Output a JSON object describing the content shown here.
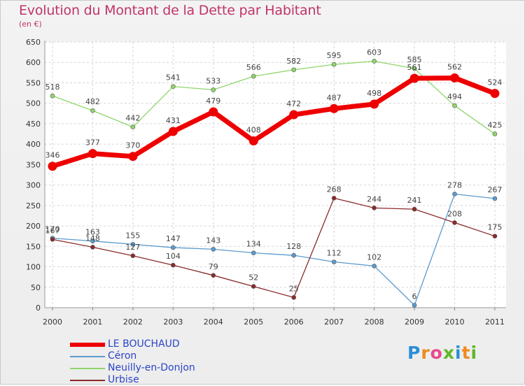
{
  "header": {
    "title": "Evolution du Montant de la Dette par Habitant",
    "unit": "(en €)"
  },
  "brand": {
    "letters": [
      "P",
      "r",
      "o",
      "x",
      "i",
      "t",
      "i"
    ],
    "colors": [
      "#2a8fd8",
      "#f08a1e",
      "#e94b8a",
      "#5fb82a",
      "#2a8fd8",
      "#f08a1e",
      "#5fb82a"
    ]
  },
  "chart_data": {
    "type": "line",
    "title": "Evolution du Montant de la Dette par Habitant",
    "subtitle": "(en €)",
    "xlabel": "",
    "ylabel": "",
    "x": [
      "2000",
      "2001",
      "2002",
      "2003",
      "2004",
      "2005",
      "2006",
      "2007",
      "2008",
      "2009",
      "2010",
      "2011"
    ],
    "ylim": [
      0,
      650
    ],
    "yticks": [
      0,
      50,
      100,
      150,
      200,
      250,
      300,
      350,
      400,
      450,
      500,
      550,
      600,
      650
    ],
    "grid": true,
    "legend_position": "bottom-left",
    "series": [
      {
        "name": "LE BOUCHAUD",
        "color": "#ee0000",
        "values": [
          346,
          377,
          370,
          431,
          479,
          408,
          472,
          487,
          498,
          561,
          562,
          524
        ]
      },
      {
        "name": "Céron",
        "color": "#5b9bd0",
        "values": [
          170,
          163,
          155,
          147,
          143,
          134,
          128,
          112,
          102,
          6,
          278,
          267
        ]
      },
      {
        "name": "Neuilly-en-Donjon",
        "color": "#8fd66b",
        "values": [
          518,
          482,
          442,
          541,
          533,
          566,
          582,
          595,
          603,
          585,
          494,
          425
        ]
      },
      {
        "name": "Urbise",
        "color": "#8b2a2a",
        "values": [
          167,
          148,
          127,
          104,
          79,
          52,
          25,
          268,
          244,
          241,
          208,
          175
        ]
      }
    ]
  }
}
